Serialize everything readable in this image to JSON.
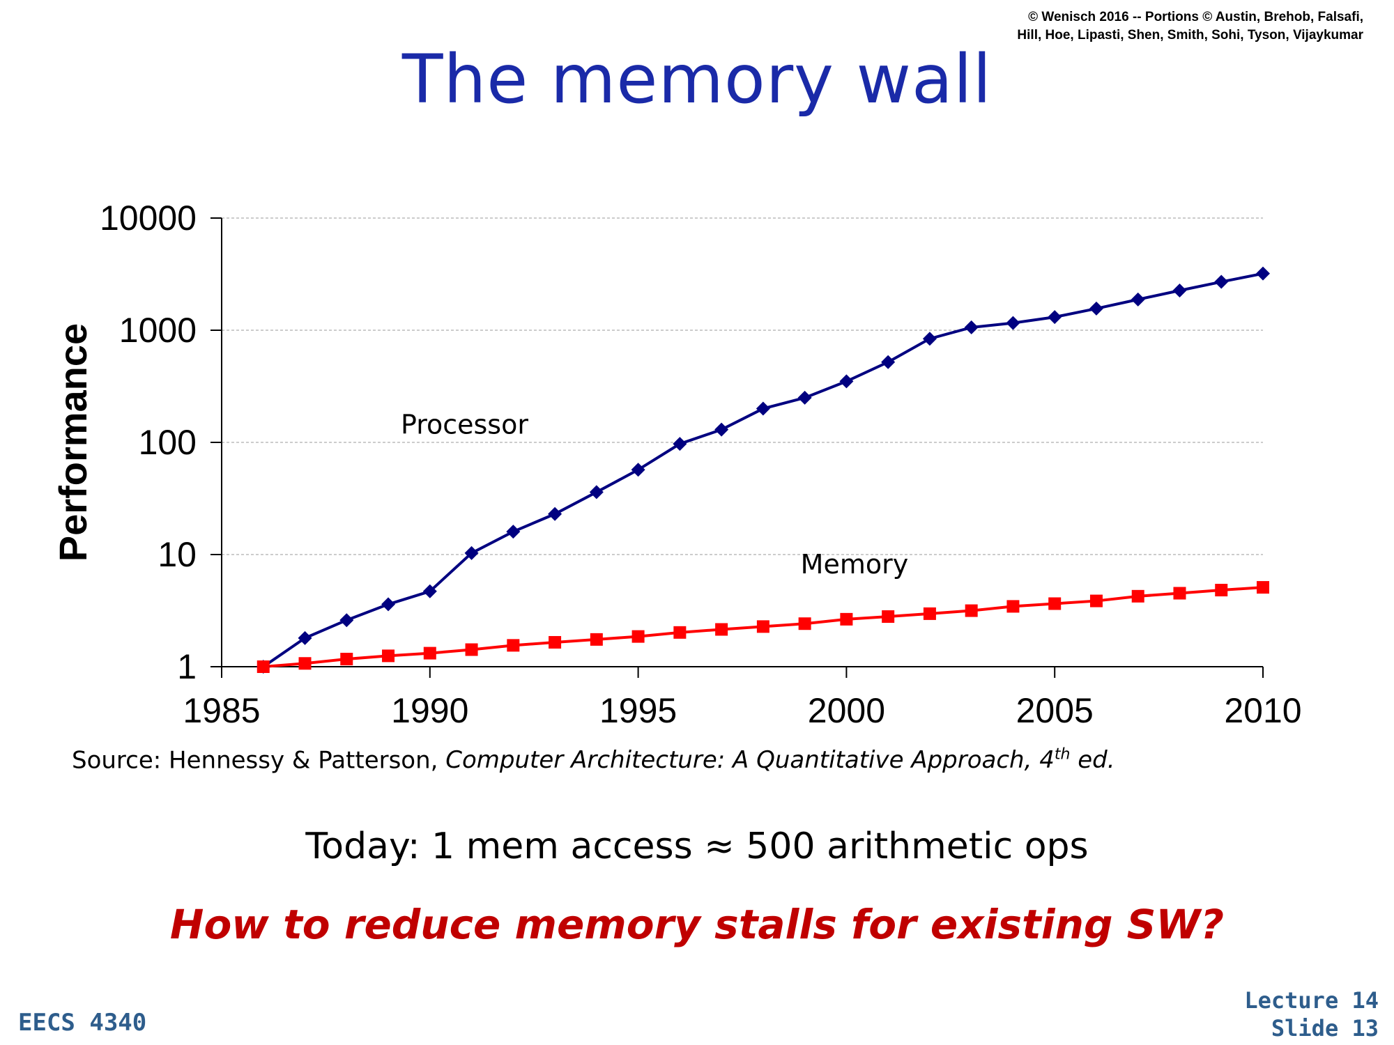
{
  "copyright": {
    "line1": "© Wenisch 2016 -- Portions © Austin, Brehob, Falsafi,",
    "line2": "Hill, Hoe, Lipasti, Shen, Smith, Sohi, Tyson, Vijaykumar"
  },
  "title": "The memory wall",
  "source": {
    "prefix": "Source: Hennessy & Patterson, ",
    "book": "Computer Architecture: A Quantitative Approach, 4",
    "sup": "th",
    "suffix": " ed."
  },
  "today_text": "Today: 1 mem access ≈ 500 arithmetic ops",
  "question_text": "How to reduce memory stalls for existing SW?",
  "footer": {
    "course": "EECS 4340",
    "lecture": "Lecture 14",
    "slide": "Slide 13"
  },
  "chart_data": {
    "type": "line",
    "ylabel": "Performance",
    "xlabel": "",
    "yscale": "log",
    "ylim": [
      1,
      10000
    ],
    "xlim": [
      1985,
      2010
    ],
    "y_ticks": [
      "1",
      "10",
      "100",
      "1000",
      "10000"
    ],
    "x_ticks": [
      "1985",
      "1990",
      "1995",
      "2000",
      "2005",
      "2010"
    ],
    "grid": "horizontal dashed",
    "series": [
      {
        "name": "Processor",
        "color": "#000080",
        "marker": "diamond",
        "x": [
          1986,
          1987,
          1988,
          1989,
          1990,
          1991,
          1992,
          1993,
          1994,
          1995,
          1996,
          1997,
          1998,
          1999,
          2000,
          2001,
          2002,
          2003,
          2004,
          2005,
          2006,
          2007,
          2008,
          2009,
          2010
        ],
        "y": [
          1,
          1.8,
          2.6,
          3.6,
          4.7,
          10.3,
          16,
          23,
          36,
          57,
          97,
          130,
          200,
          250,
          350,
          520,
          840,
          1060,
          1160,
          1310,
          1560,
          1880,
          2260,
          2700,
          3200
        ]
      },
      {
        "name": "Memory",
        "color": "#ff0000",
        "marker": "square",
        "x": [
          1986,
          1987,
          1988,
          1989,
          1990,
          1991,
          1992,
          1993,
          1994,
          1995,
          1996,
          1997,
          1998,
          1999,
          2000,
          2001,
          2002,
          2003,
          2004,
          2005,
          2006,
          2007,
          2008,
          2009,
          2010
        ],
        "y": [
          1,
          1.07,
          1.17,
          1.25,
          1.32,
          1.42,
          1.55,
          1.65,
          1.75,
          1.86,
          2.02,
          2.15,
          2.28,
          2.42,
          2.65,
          2.8,
          2.97,
          3.16,
          3.45,
          3.65,
          3.86,
          4.25,
          4.52,
          4.82,
          5.1
        ]
      }
    ]
  }
}
